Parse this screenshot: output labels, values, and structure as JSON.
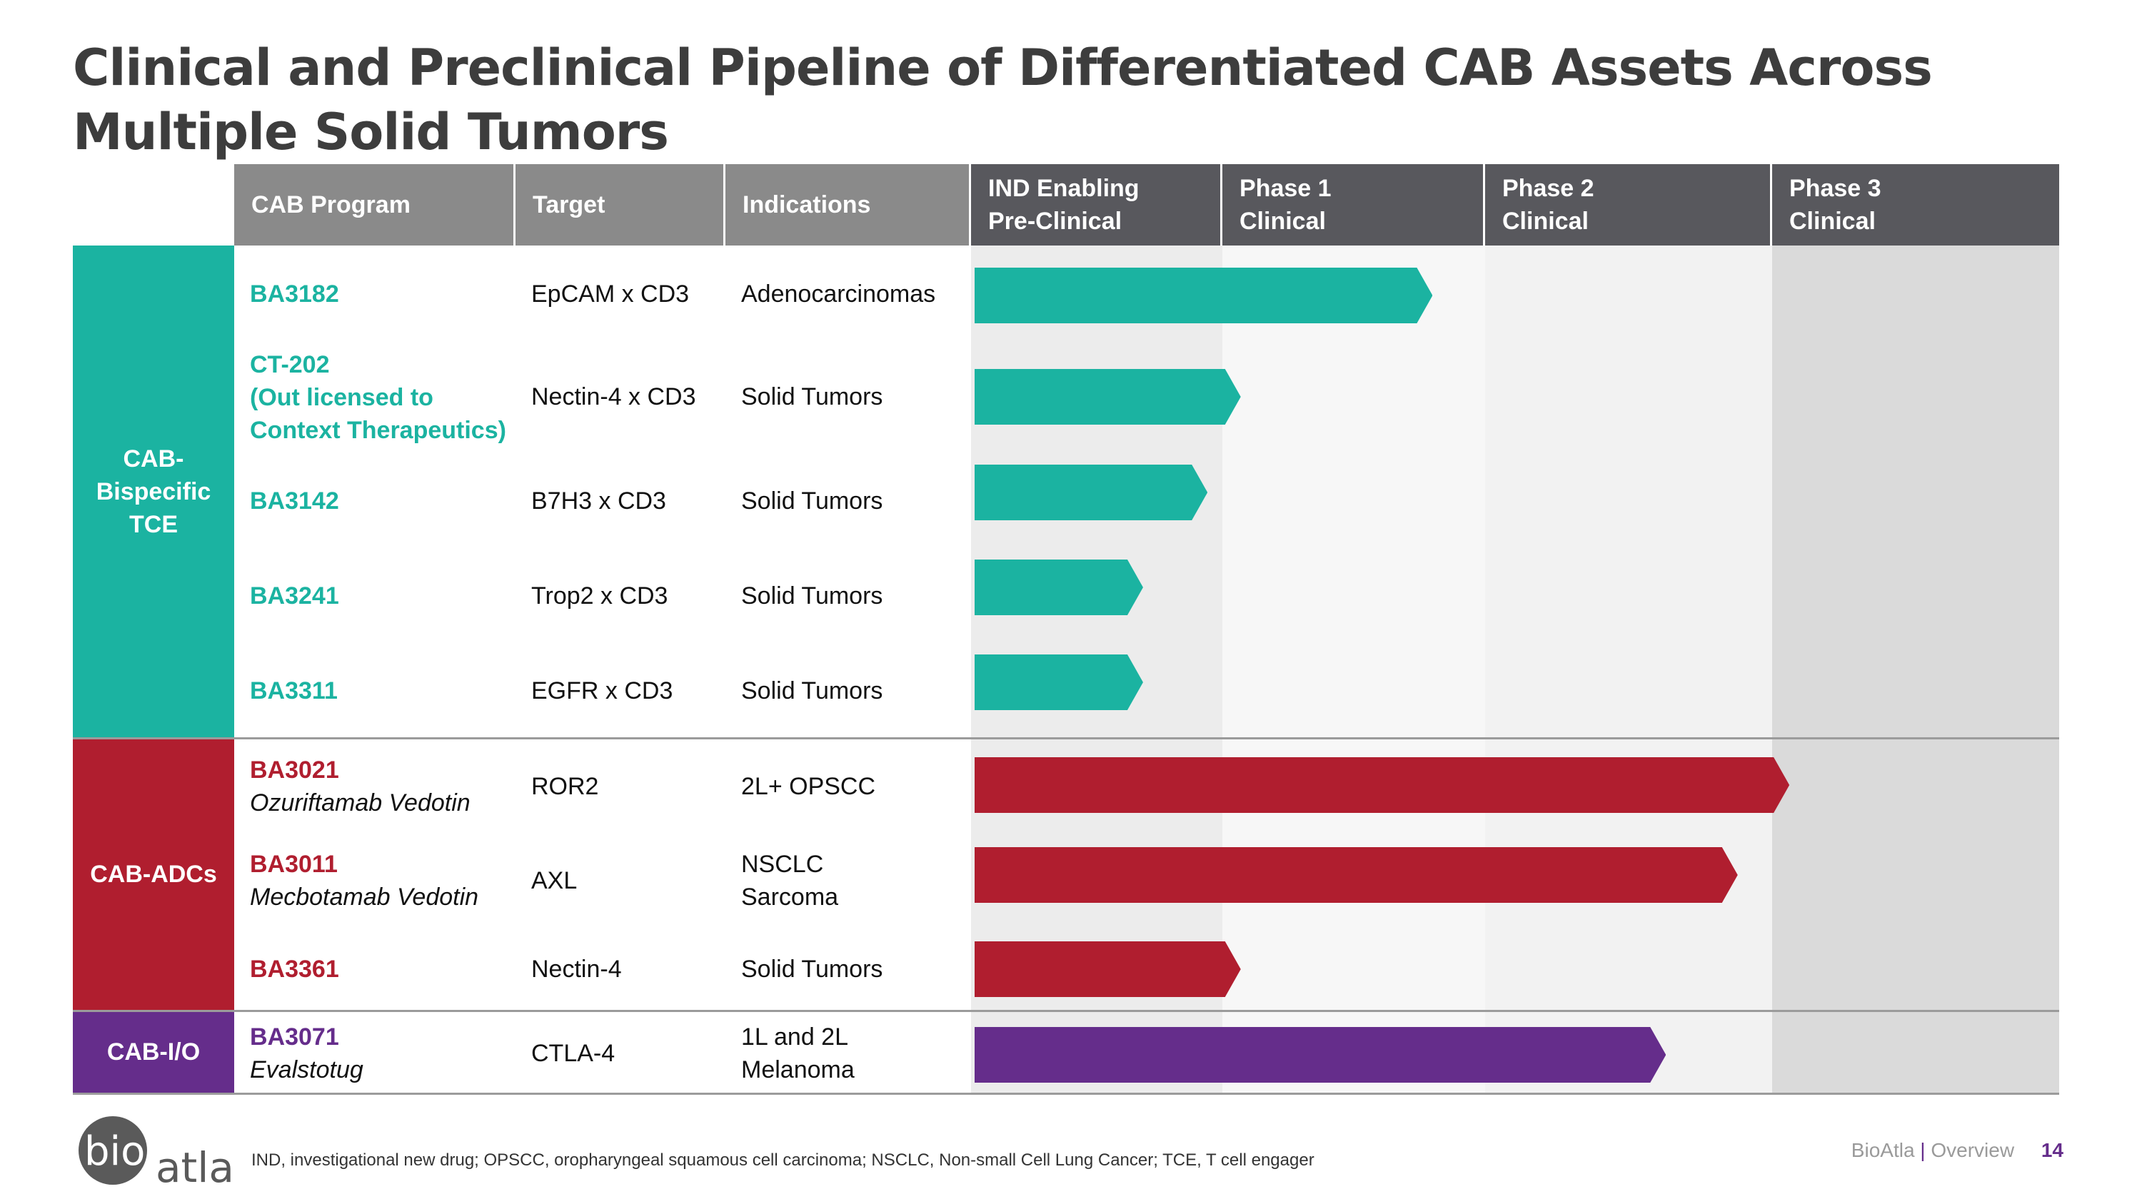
{
  "title": "Clinical and Preclinical Pipeline of Differentiated CAB Assets Across Multiple Solid Tumors",
  "header": {
    "program": "CAB Program",
    "target": "Target",
    "indications": "Indications",
    "phases": [
      {
        "line1": "IND Enabling",
        "line2": "Pre-Clinical"
      },
      {
        "line1": "Phase 1",
        "line2": "Clinical"
      },
      {
        "line1": "Phase 2",
        "line2": "Clinical"
      },
      {
        "line1": "Phase 3",
        "line2": "Clinical"
      }
    ]
  },
  "categories": [
    {
      "lines": [
        "CAB-",
        "Bispecific",
        "TCE"
      ],
      "color": "#1bb3a1"
    },
    {
      "lines": [
        "CAB-ADCs"
      ],
      "color": "#b01e2f"
    },
    {
      "lines": [
        "CAB-I/O"
      ],
      "color": "#652d8b"
    }
  ],
  "rows": [
    {
      "program": "BA3182",
      "sub": "",
      "target": "EpCAM x CD3",
      "indication": [
        "Adenocarcinomas"
      ],
      "progress_phases": 1.8,
      "color": "#1bb3a1"
    },
    {
      "program": "CT-202",
      "program_lines": [
        "(Out licensed to",
        "Context Therapeutics)"
      ],
      "sub": "",
      "target": "Nectin-4 x CD3",
      "indication": [
        "Solid Tumors"
      ],
      "progress_phases": 1.07,
      "color": "#1bb3a1"
    },
    {
      "program": "BA3142",
      "sub": "",
      "target": "B7H3 x CD3",
      "indication": [
        "Solid Tumors"
      ],
      "progress_phases": 0.94,
      "color": "#1bb3a1"
    },
    {
      "program": "BA3241",
      "sub": "",
      "target": "Trop2 x CD3",
      "indication": [
        "Solid Tumors"
      ],
      "progress_phases": 0.68,
      "color": "#1bb3a1"
    },
    {
      "program": "BA3311",
      "sub": "",
      "target": "EGFR x CD3",
      "indication": [
        "Solid Tumors"
      ],
      "progress_phases": 0.68,
      "color": "#1bb3a1"
    },
    {
      "program": "BA3021",
      "sub": "Ozuriftamab Vedotin",
      "target": "ROR2",
      "indication": [
        "2L+ OPSCC"
      ],
      "progress_phases": 3.06,
      "color": "#b01e2f"
    },
    {
      "program": "BA3011",
      "sub": "Mecbotamab Vedotin",
      "target": "AXL",
      "indication": [
        "NSCLC",
        "Sarcoma"
      ],
      "progress_phases": 2.88,
      "color": "#b01e2f"
    },
    {
      "program": "BA3361",
      "sub": "",
      "target": "Nectin-4",
      "indication": [
        "Solid Tumors"
      ],
      "progress_phases": 1.07,
      "color": "#b01e2f"
    },
    {
      "program": "BA3071",
      "sub": "Evalstotug",
      "target": "CTLA-4",
      "indication": [
        "1L and 2L",
        "Melanoma"
      ],
      "progress_phases": 2.63,
      "color": "#652d8b"
    }
  ],
  "footnote": "IND, investigational new drug; OPSCC, oropharyngeal squamous cell carcinoma; NSCLC, Non-small Cell Lung Cancer; TCE, T cell engager",
  "brand": {
    "name": "BioAtla",
    "separator": "|",
    "section": "Overview",
    "page": "14"
  },
  "logo": {
    "text_left": "bio",
    "text_right": "atla"
  }
}
